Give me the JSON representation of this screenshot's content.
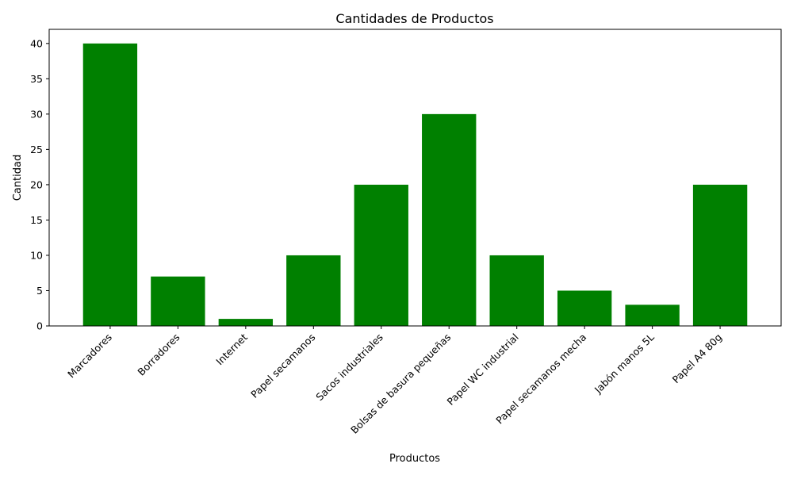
{
  "chart_data": {
    "type": "bar",
    "title": "Cantidades de Productos",
    "xlabel": "Productos",
    "ylabel": "Cantidad",
    "categories": [
      "Marcadores",
      "Borradores",
      "Internet",
      "Papel secamanos",
      "Sacos industriales",
      "Bolsas de basura pequeñas",
      "Papel WC industrial",
      "Papel secamanos mecha",
      "Jabón manos 5L",
      "Papel A4 80g"
    ],
    "values": [
      40,
      7,
      1,
      10,
      20,
      30,
      10,
      5,
      3,
      20
    ],
    "ylim": [
      0,
      42
    ],
    "yticks": [
      0,
      5,
      10,
      15,
      20,
      25,
      30,
      35,
      40
    ],
    "bar_color": "#008000",
    "grid": false,
    "legend": "none"
  }
}
